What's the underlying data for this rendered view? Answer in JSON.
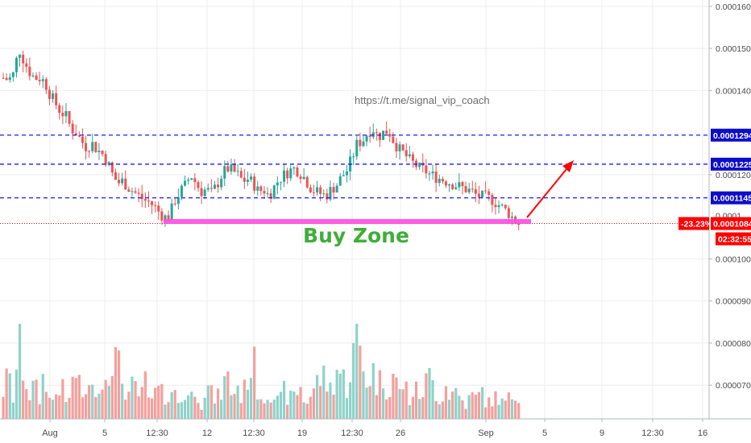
{
  "chart_data": {
    "type": "candlestick",
    "y_axis": {
      "ylim": [
        6.2e-05,
        0.0001615
      ],
      "ticks": [
        "0.0001600",
        "0.0001500",
        "0.0001400",
        "0.0001200",
        "0.0001000",
        "0.0000900",
        "0.0000800",
        "0.0000700"
      ],
      "tick_values": [
        0.00016,
        0.00015,
        0.00014,
        0.00012,
        0.0001,
        9e-05,
        8e-05,
        7e-05
      ]
    },
    "x_axis": {
      "tick_labels": [
        "Aug",
        "5",
        "12:30",
        "12",
        "12:30",
        "19",
        "12:30",
        "26",
        "Sep",
        "5",
        "9",
        "12:30",
        "16"
      ]
    },
    "levels": [
      {
        "value": 0.0001294,
        "label": "0.0001294",
        "color": "#1a1aff"
      },
      {
        "value": 0.0001225,
        "label": "0.0001225",
        "color": "#1a1aff"
      },
      {
        "value": 0.0001145,
        "label": "0.0001145",
        "color": "#1a1aff"
      }
    ],
    "current_price": {
      "value": 0.0001084,
      "label": "0.0001084",
      "change": "-23.23%",
      "countdown": "02:32:55",
      "color": "#ff0000"
    },
    "buy_zone": {
      "value": 0.0001079,
      "label": "Buy Zone",
      "color": "#ff4be2"
    },
    "url_annotation": "https://t.me/signal_vip_coach",
    "arrow": {
      "from_value": 0.0001084,
      "to_value": 0.0001222
    },
    "partial_label": "0.0001",
    "colors": {
      "up": "#26a69a",
      "down": "#ef5350",
      "up_volume": "#8fd2c9",
      "down_volume": "#f4a09d",
      "axis_text": "#4a4a4a",
      "grid": "#eeeeee"
    },
    "price_path": [
      0.000143,
      0.0001425,
      0.000144,
      0.00015,
      0.000147,
      0.0001445,
      0.000143,
      0.000143,
      0.000142,
      0.000139,
      0.000137,
      0.000135,
      0.000134,
      0.000131,
      0.00013,
      0.000128,
      0.0001265,
      0.0001275,
      0.000126,
      0.000125,
      0.000123,
      0.00012,
      0.000118,
      0.0001185,
      0.000117,
      0.000116,
      0.000115,
      0.000114,
      0.0001135,
      0.0001125,
      0.000111,
      0.0001098,
      0.0001105,
      0.000114,
      0.000116,
      0.0001175,
      0.00012,
      0.000118,
      0.000116,
      0.0001165,
      0.0001155,
      0.0001175,
      0.00012,
      0.0001215,
      0.000121,
      0.00012,
      0.0001185,
      0.000119,
      0.000118,
      0.000116,
      0.0001165,
      0.000115,
      0.000117,
      0.000119,
      0.00012,
      0.000121,
      0.0001215,
      0.0001205,
      0.000119,
      0.000117,
      0.000116,
      0.0001155,
      0.000115,
      0.0001165,
      0.0001175,
      0.0001195,
      0.000121,
      0.000124,
      0.0001275,
      0.000128,
      0.00013,
      0.000131,
      0.000129,
      0.00013,
      0.0001305,
      0.000128,
      0.000126,
      0.000125,
      0.0001235,
      0.0001225,
      0.0001215,
      0.000121,
      0.00012,
      0.0001195,
      0.000119,
      0.0001185,
      0.000118,
      0.0001175,
      0.000117,
      0.0001165,
      0.000116,
      0.000115,
      0.0001148,
      0.0001145,
      0.000114,
      0.000113,
      0.000112,
      0.000111,
      0.0001095,
      0.0001084
    ],
    "volume_path": [
      0.3,
      0.45,
      0.2,
      0.8,
      0.5,
      0.25,
      0.35,
      0.2,
      0.55,
      0.15,
      0.25,
      0.4,
      0.15,
      0.3,
      0.5,
      0.2,
      0.35,
      0.25,
      0.45,
      0.3,
      0.6,
      0.7,
      0.55,
      0.4,
      0.25,
      0.35,
      0.2,
      0.45,
      0.15,
      0.25,
      0.3,
      0.2,
      0.35,
      0.25,
      0.15,
      0.3,
      0.2,
      0.4,
      0.15,
      0.35,
      0.25,
      0.2,
      0.3,
      0.45,
      0.25,
      0.35,
      0.2,
      0.5,
      0.6,
      0.3,
      0.2,
      0.35,
      0.25,
      0.15,
      0.3,
      0.2,
      0.25,
      0.35,
      0.15,
      0.25,
      0.35,
      0.45,
      0.4,
      0.3,
      0.55,
      0.45,
      0.35,
      0.6,
      0.9,
      0.55,
      0.4,
      0.5,
      0.35,
      0.45,
      0.3,
      0.5,
      0.25,
      0.4,
      0.2,
      0.3,
      0.25,
      0.35,
      0.45,
      0.3,
      0.2,
      0.35,
      0.25,
      0.3,
      0.2,
      0.15,
      0.25,
      0.2,
      0.3,
      0.15,
      0.2,
      0.25,
      0.15,
      0.2,
      0.25,
      0.3
    ]
  }
}
